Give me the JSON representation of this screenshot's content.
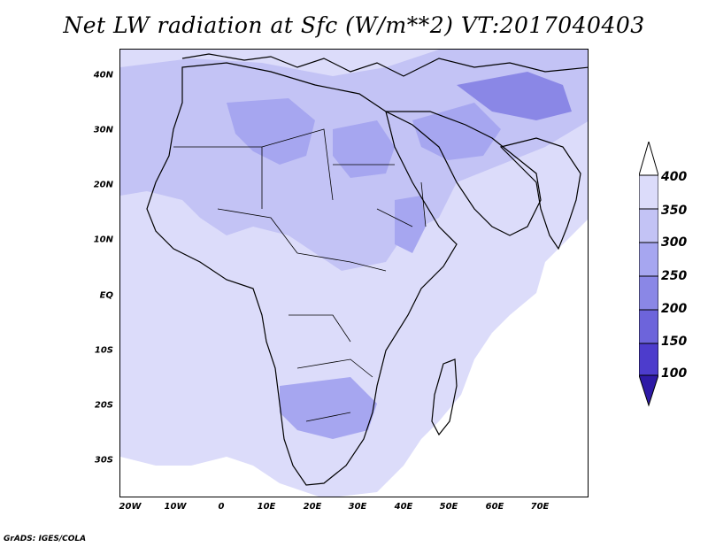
{
  "title": "Net LW radiation at Sfc (W/m**2) VT:2017040403",
  "credit": "GrADS: IGES/COLA",
  "map": {
    "lon_range": [
      -25,
      80
    ],
    "lat_range": [
      -37,
      45
    ],
    "lat_labels": [
      {
        "value": 40,
        "text": "40N"
      },
      {
        "value": 30,
        "text": "30N"
      },
      {
        "value": 20,
        "text": "20N"
      },
      {
        "value": 10,
        "text": "10N"
      },
      {
        "value": 0,
        "text": "EQ"
      },
      {
        "value": -10,
        "text": "10S"
      },
      {
        "value": -20,
        "text": "20S"
      },
      {
        "value": -30,
        "text": "30S"
      }
    ],
    "lon_labels": [
      {
        "value": -20,
        "text": "20W"
      },
      {
        "value": -10,
        "text": "10W"
      },
      {
        "value": 0,
        "text": "0"
      },
      {
        "value": 10,
        "text": "10E"
      },
      {
        "value": 20,
        "text": "20E"
      },
      {
        "value": 30,
        "text": "30E"
      },
      {
        "value": 40,
        "text": "40E"
      },
      {
        "value": 50,
        "text": "50E"
      },
      {
        "value": 60,
        "text": "60E"
      },
      {
        "value": 70,
        "text": "70E"
      }
    ]
  },
  "colorbar": {
    "labels": [
      "400",
      "350",
      "300",
      "250",
      "200",
      "150",
      "100"
    ],
    "colors": [
      "#ffffff",
      "#dcdcfa",
      "#c3c3f5",
      "#a6a6f0",
      "#8a87e6",
      "#6d64db",
      "#4d3ccc",
      "#2e1aa6"
    ]
  }
}
